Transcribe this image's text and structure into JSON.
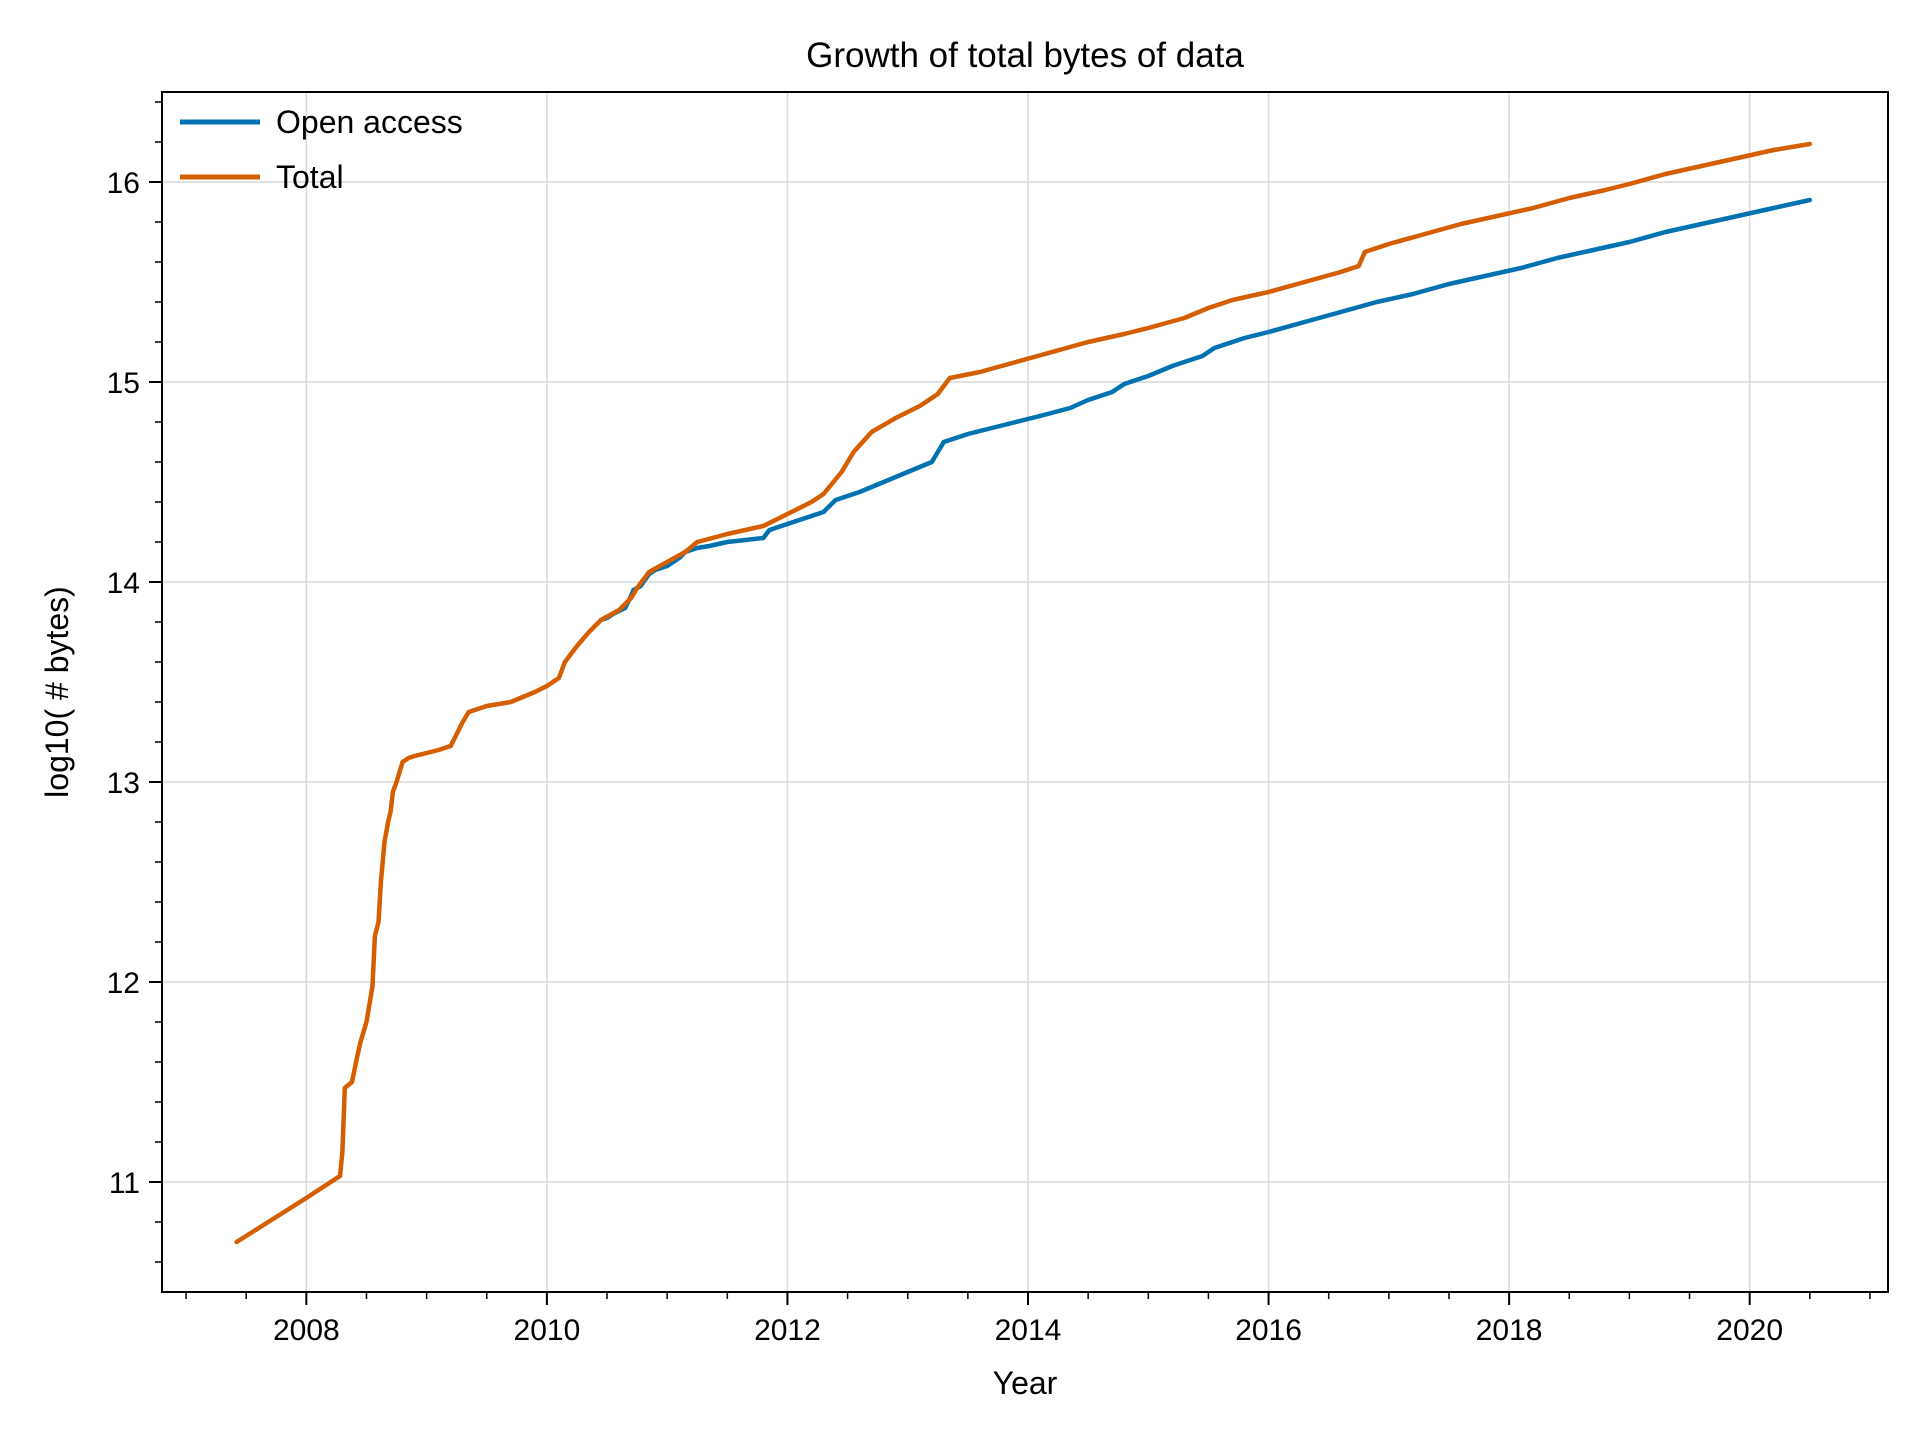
{
  "chart_data": {
    "type": "line",
    "title": "Growth of total bytes of data",
    "xlabel": "Year",
    "ylabel": "log10( # bytes)",
    "xlim": [
      2006.8,
      2021.15
    ],
    "ylim": [
      10.45,
      16.45
    ],
    "xticks": [
      2008,
      2010,
      2012,
      2014,
      2016,
      2018,
      2020
    ],
    "yticks": [
      11,
      12,
      13,
      14,
      15,
      16
    ],
    "grid": true,
    "legend": "top-left",
    "series": [
      {
        "name": "Open access",
        "color": "#0072b2",
        "x": [
          2010.45,
          2010.5,
          2010.55,
          2010.65,
          2010.7,
          2010.72,
          2010.78,
          2010.85,
          2010.9,
          2011.0,
          2011.1,
          2011.15,
          2011.25,
          2011.35,
          2011.5,
          2011.65,
          2011.8,
          2011.85,
          2012.0,
          2012.2,
          2012.3,
          2012.4,
          2012.6,
          2012.8,
          2013.0,
          2013.2,
          2013.25,
          2013.3,
          2013.5,
          2013.7,
          2013.9,
          2014.1,
          2014.35,
          2014.5,
          2014.7,
          2014.8,
          2015.0,
          2015.2,
          2015.45,
          2015.55,
          2015.8,
          2016.0,
          2016.3,
          2016.6,
          2016.9,
          2017.2,
          2017.5,
          2017.8,
          2018.1,
          2018.4,
          2018.7,
          2019.0,
          2019.3,
          2019.6,
          2019.9,
          2020.2,
          2020.5
        ],
        "y": [
          13.81,
          13.82,
          13.84,
          13.87,
          13.93,
          13.96,
          13.98,
          14.04,
          14.06,
          14.08,
          14.12,
          14.15,
          14.17,
          14.18,
          14.2,
          14.21,
          14.22,
          14.26,
          14.29,
          14.33,
          14.35,
          14.41,
          14.45,
          14.5,
          14.55,
          14.6,
          14.65,
          14.7,
          14.74,
          14.77,
          14.8,
          14.83,
          14.87,
          14.91,
          14.95,
          14.99,
          15.03,
          15.08,
          15.13,
          15.17,
          15.22,
          15.25,
          15.3,
          15.35,
          15.4,
          15.44,
          15.49,
          15.53,
          15.57,
          15.62,
          15.66,
          15.7,
          15.75,
          15.79,
          15.83,
          15.87,
          15.91
        ]
      },
      {
        "name": "Total",
        "color": "#d55e00",
        "x": [
          2007.42,
          2008.0,
          2008.28,
          2008.3,
          2008.32,
          2008.38,
          2008.42,
          2008.45,
          2008.5,
          2008.55,
          2008.57,
          2008.6,
          2008.62,
          2008.65,
          2008.68,
          2008.7,
          2008.72,
          2008.75,
          2008.8,
          2008.85,
          2008.9,
          2009.1,
          2009.2,
          2009.3,
          2009.35,
          2009.5,
          2009.7,
          2009.9,
          2010.0,
          2010.1,
          2010.15,
          2010.25,
          2010.35,
          2010.45,
          2010.6,
          2010.7,
          2010.75,
          2010.85,
          2011.0,
          2011.15,
          2011.25,
          2011.5,
          2011.8,
          2012.0,
          2012.2,
          2012.3,
          2012.45,
          2012.55,
          2012.7,
          2012.9,
          2013.1,
          2013.25,
          2013.35,
          2013.6,
          2013.9,
          2014.2,
          2014.5,
          2014.8,
          2015.0,
          2015.3,
          2015.5,
          2015.7,
          2016.0,
          2016.3,
          2016.6,
          2016.75,
          2016.8,
          2017.0,
          2017.3,
          2017.6,
          2017.9,
          2018.2,
          2018.5,
          2018.8,
          2019.0,
          2019.3,
          2019.6,
          2019.9,
          2020.2,
          2020.5
        ],
        "y": [
          10.7,
          10.92,
          11.03,
          11.15,
          11.47,
          11.5,
          11.62,
          11.7,
          11.8,
          11.98,
          12.23,
          12.3,
          12.5,
          12.7,
          12.8,
          12.85,
          12.95,
          13.0,
          13.1,
          13.12,
          13.13,
          13.16,
          13.18,
          13.3,
          13.35,
          13.38,
          13.4,
          13.45,
          13.48,
          13.52,
          13.6,
          13.68,
          13.75,
          13.81,
          13.86,
          13.92,
          13.97,
          14.05,
          14.1,
          14.15,
          14.2,
          14.24,
          14.28,
          14.34,
          14.4,
          14.44,
          14.55,
          14.65,
          14.75,
          14.82,
          14.88,
          14.94,
          15.02,
          15.05,
          15.1,
          15.15,
          15.2,
          15.24,
          15.27,
          15.32,
          15.37,
          15.41,
          15.45,
          15.5,
          15.55,
          15.58,
          15.65,
          15.69,
          15.74,
          15.79,
          15.83,
          15.87,
          15.92,
          15.96,
          15.99,
          16.04,
          16.08,
          16.12,
          16.16,
          16.19
        ]
      }
    ]
  }
}
